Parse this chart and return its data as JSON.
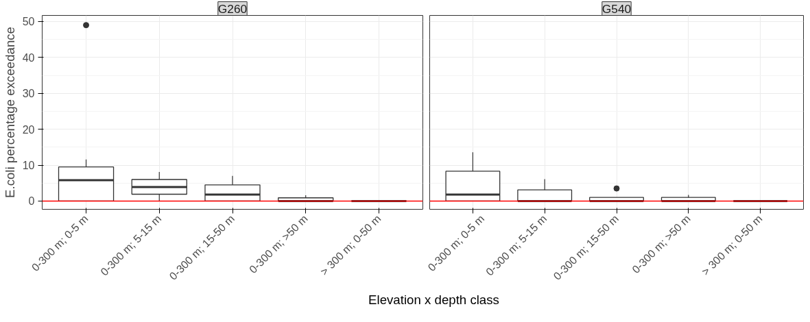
{
  "chart_data": [
    {
      "type": "box",
      "title": "G260",
      "xlabel": "Elevation x depth class",
      "ylabel": "E.coli percentage exceedance",
      "categories": [
        "0-300 m; 0-5 m",
        "0-300 m; 5-15 m",
        "0-300 m; 15-50 m",
        "0-300 m; >50 m",
        "> 300 m; 0-50 m"
      ],
      "boxes": [
        {
          "low": 0,
          "q1": 0,
          "median": 5.8,
          "q3": 9.5,
          "high": 11.6,
          "outliers": [
            49.0
          ]
        },
        {
          "low": 0,
          "q1": 1.9,
          "median": 3.9,
          "q3": 6.0,
          "high": 8.1
        },
        {
          "low": 0,
          "q1": 0,
          "median": 1.8,
          "q3": 4.5,
          "high": 7.0
        },
        {
          "low": 0,
          "q1": 0,
          "median": 0,
          "q3": 0.9,
          "high": 1.6
        },
        {
          "low": 0,
          "q1": 0,
          "median": 0,
          "q3": 0,
          "high": 0
        }
      ],
      "ylim": [
        -2.3,
        51.7
      ],
      "yticks": [
        0,
        10,
        20,
        30,
        40,
        50
      ],
      "grid": true,
      "ref_lines": [
        {
          "axis": "y",
          "value": 0,
          "color": "#ff0000"
        }
      ]
    },
    {
      "type": "box",
      "title": "G540",
      "categories": [
        "0-300 m; 0-5 m",
        "0-300 m; 5-15 m",
        "0-300 m; 15-50 m",
        "0-300 m; >50 m",
        "> 300 m; 0-50 m"
      ],
      "boxes": [
        {
          "low": 0,
          "q1": 0,
          "median": 1.8,
          "q3": 8.3,
          "high": 13.6
        },
        {
          "low": 0,
          "q1": 0,
          "median": 0,
          "q3": 3.1,
          "high": 6.1
        },
        {
          "low": 0,
          "q1": 0,
          "median": 0,
          "q3": 1.0,
          "high": 1.0,
          "outliers": [
            3.5
          ]
        },
        {
          "low": 0,
          "q1": 0,
          "median": 0,
          "q3": 1.0,
          "high": 1.7
        },
        {
          "low": 0,
          "q1": 0,
          "median": 0,
          "q3": 0,
          "high": 0
        }
      ],
      "ylim": [
        -2.3,
        51.7
      ],
      "yticks": [
        0,
        10,
        20,
        30,
        40,
        50
      ],
      "grid": true,
      "tick_labels": "x",
      "ref_lines": [
        {
          "axis": "y",
          "value": 0,
          "color": "#ff0000"
        }
      ]
    }
  ]
}
